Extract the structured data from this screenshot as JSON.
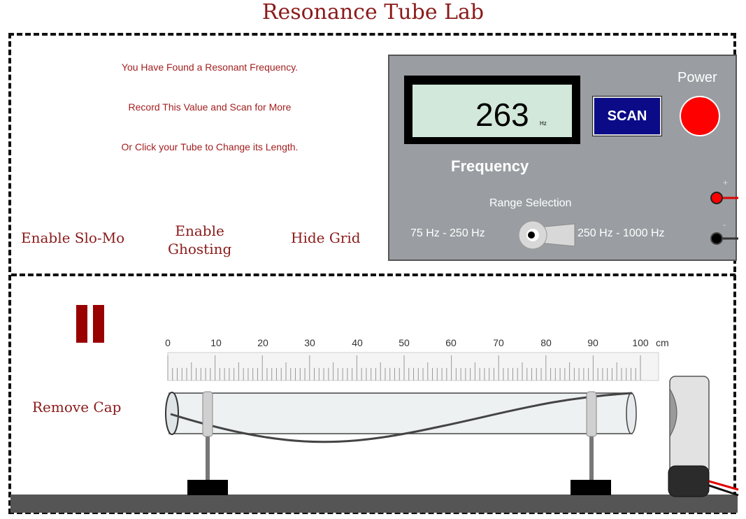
{
  "header": {
    "title": "Resonance Tube Lab"
  },
  "messages": {
    "line1": "You Have Found a Resonant Frequency.",
    "line2": "Record This Value and Scan for More",
    "line3": "Or Click your Tube to Change its Length."
  },
  "controls": {
    "slomo": "Enable Slo-Mo",
    "ghosting_line1": "Enable",
    "ghosting_line2": "Ghosting",
    "grid": "Hide Grid",
    "cap": "Remove Cap"
  },
  "generator": {
    "frequency_value": "263",
    "frequency_unit": "Hz",
    "frequency_label": "Frequency",
    "scan_label": "SCAN",
    "power_label": "Power",
    "range_label": "Range Selection",
    "range_low": "75 Hz - 250 Hz",
    "range_high": "250 Hz - 1000 Hz",
    "terminal_plus": "+",
    "terminal_minus": "-"
  },
  "ruler": {
    "ticks": [
      "0",
      "10",
      "20",
      "30",
      "40",
      "50",
      "60",
      "70",
      "80",
      "90",
      "100"
    ],
    "unit": "cm"
  },
  "colors": {
    "title": "#8b1a1a",
    "message": "#a32020",
    "panel": "#9a9ea2",
    "lcd": "#d2e8da",
    "scan_button": "#0b0b88",
    "power_button": "#ff0000",
    "pause_icon": "#990000"
  },
  "icons": {
    "pause": "pause-icon",
    "knob": "range-knob-icon"
  }
}
